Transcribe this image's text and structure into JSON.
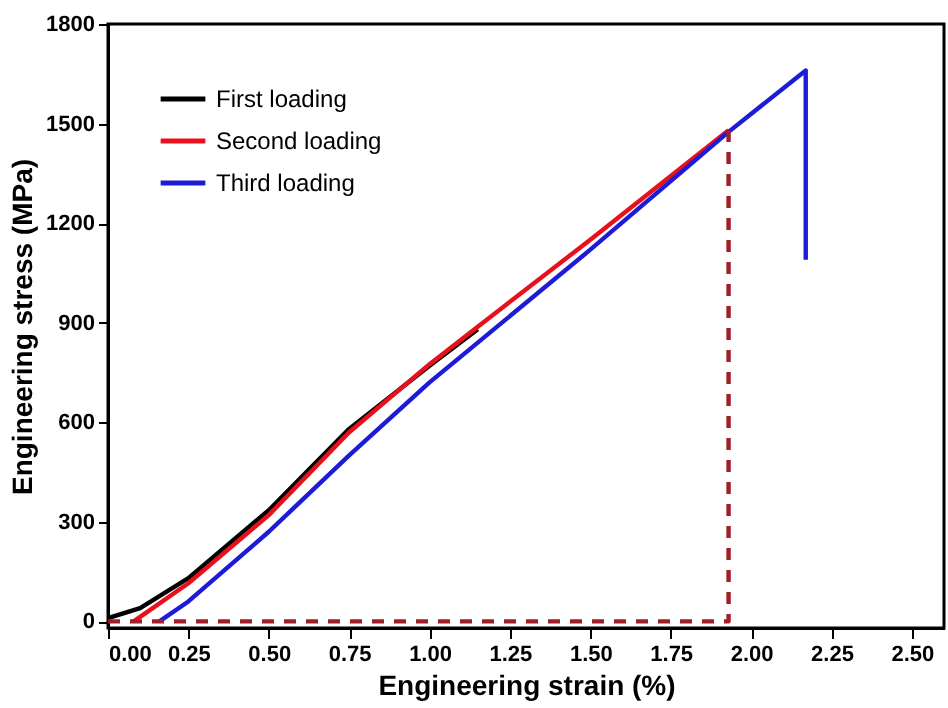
{
  "chart_data": {
    "type": "line",
    "xlabel": "Engineering strain (%)",
    "ylabel": "Engineering stress (MPa)",
    "xlim": [
      0,
      2.6
    ],
    "xticks": [
      {
        "value": 0,
        "label": "0.00"
      },
      0.25,
      {
        "value": 0.5,
        "label": "0.50"
      },
      0.75,
      {
        "value": 1,
        "label": "1.00"
      },
      1.25,
      {
        "value": 1.5,
        "label": "1.50"
      },
      1.75,
      {
        "value": 2,
        "label": "2.00"
      },
      2.25,
      {
        "value": 2.5,
        "label": "2.50"
      }
    ],
    "ylim": [
      -20,
      1800
    ],
    "yticks": [
      0,
      300,
      600,
      900,
      1200,
      1500,
      1800
    ],
    "grid": false,
    "legend": "top left",
    "line_style": "solid",
    "series": [
      {
        "name": "First loading",
        "color": "#000000",
        "x": [
          0,
          0.1,
          0.25,
          0.5,
          0.75,
          1.0,
          1.15
        ],
        "values": [
          10,
          40,
          130,
          335,
          580,
          770,
          880
        ]
      },
      {
        "name": "Second loading",
        "color": "#e8101c",
        "x": [
          0.08,
          0.25,
          0.5,
          0.75,
          1.0,
          1.15,
          1.5,
          1.93
        ],
        "values": [
          0,
          115,
          320,
          570,
          775,
          888,
          1150,
          1480
        ]
      },
      {
        "name": "Third loading",
        "color": "#1c1cd8",
        "x": [
          0.16,
          0.25,
          0.5,
          0.75,
          1.0,
          1.15,
          1.5,
          1.93,
          2.17,
          2.17
        ],
        "values": [
          0,
          60,
          270,
          500,
          720,
          840,
          1120,
          1475,
          1660,
          1090
        ]
      },
      {
        "color": "#a01e28",
        "line_style": "dashed",
        "x": [
          0,
          1.93,
          1.93
        ],
        "values": [
          0,
          0,
          1480
        ]
      }
    ]
  }
}
